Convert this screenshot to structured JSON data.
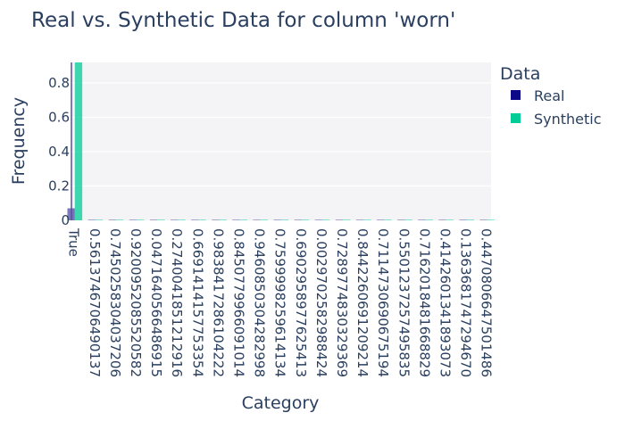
{
  "chart_data": {
    "type": "bar",
    "title": "Real vs. Synthetic Data for column 'worn'",
    "xlabel": "Category",
    "ylabel": "Frequency",
    "ylim": [
      0,
      0.92
    ],
    "y_ticks": [
      0,
      0.2,
      0.4,
      0.6,
      0.8
    ],
    "y_tick_labels": [
      "0",
      "0.2",
      "0.4",
      "0.6",
      "0.8"
    ],
    "grid": true,
    "legend": {
      "title": "Data",
      "position": "right"
    },
    "categories": [
      "True",
      "0.5613746706490137",
      "0.7450258304037206",
      "0.9200952085520582",
      "0.04716405664869​15",
      "0.2740041851212916",
      "0.6691414157753354",
      "0.9838417286104222",
      "0.8450779966091014",
      "0.9460850304282998",
      "0.7599998259614134",
      "0.6902958977625413",
      "0.0029702582988424",
      "0.7289774830329369",
      "0.8442260691209214",
      "0.7114730690675194",
      "0.5501237257495835",
      "0.7162018481668829",
      "0.4142601341893073",
      "0.1363681747294670",
      "0.4470806647501486"
    ],
    "series": [
      {
        "name": "Real",
        "color": "#0d0887",
        "values": [
          0.07,
          0,
          0,
          0,
          0,
          0,
          0,
          0,
          0,
          0,
          0,
          0,
          0,
          0,
          0,
          0,
          0,
          0,
          0,
          0,
          0
        ]
      },
      {
        "name": "Synthetic",
        "color": "#00cc96",
        "values": [
          0.92,
          0.003,
          0.003,
          0.003,
          0.003,
          0.003,
          0.003,
          0.003,
          0.003,
          0.003,
          0.003,
          0.003,
          0.003,
          0.003,
          0.003,
          0.003,
          0.003,
          0.003,
          0.003,
          0.003,
          0.003
        ]
      }
    ]
  }
}
